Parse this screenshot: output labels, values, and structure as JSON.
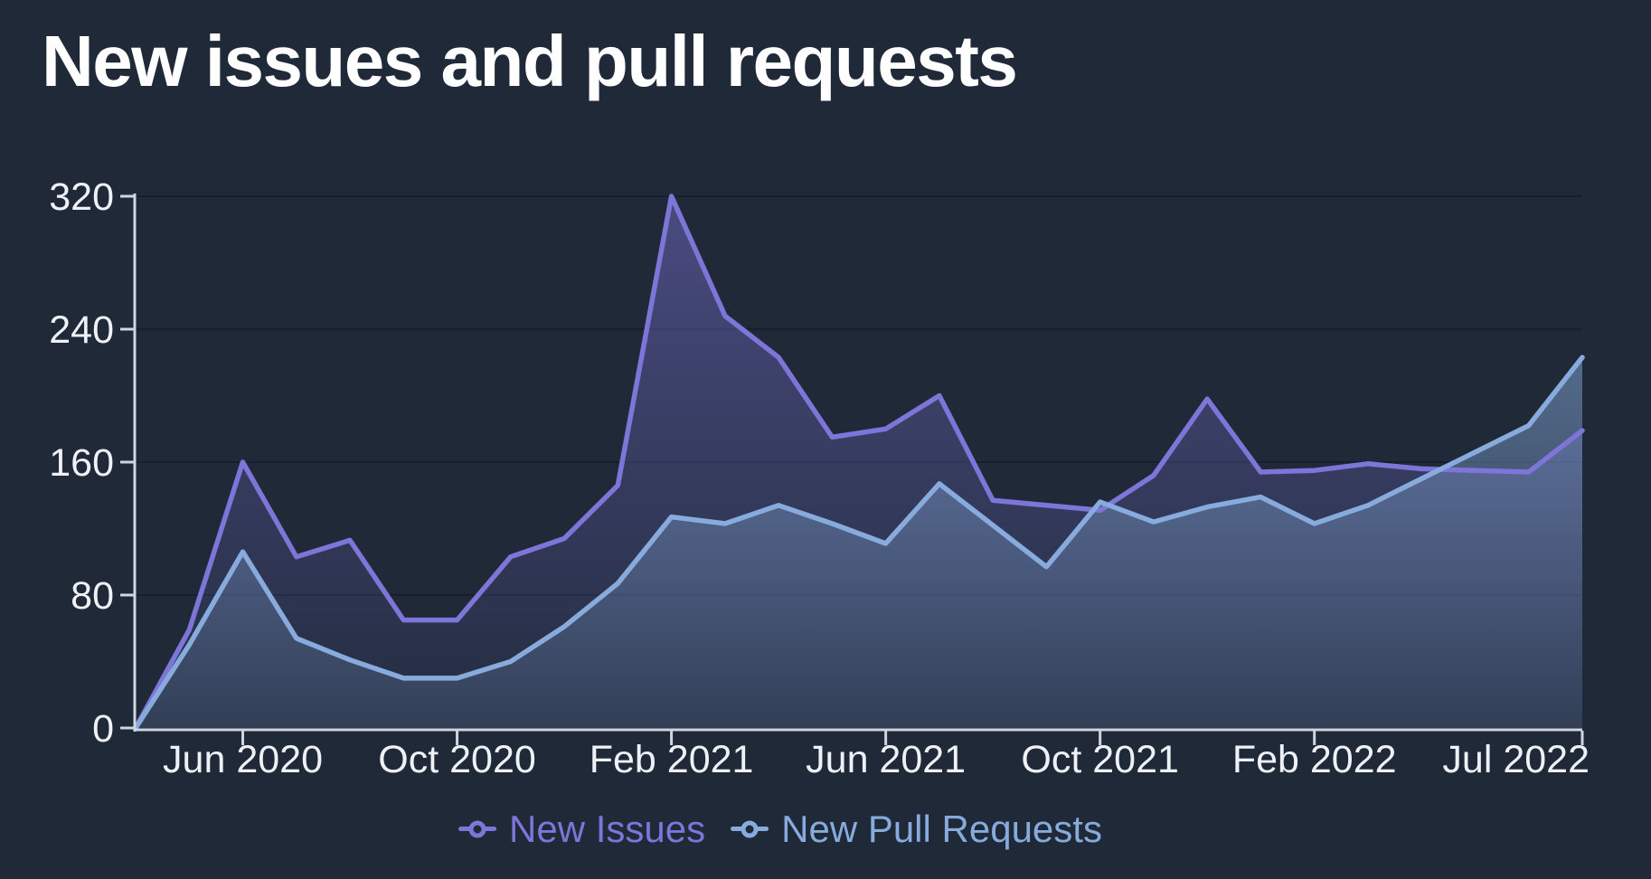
{
  "title": "New issues and pull requests",
  "colors": {
    "background": "#1f2938",
    "title": "#ffffff",
    "axis_line": "#cdd6e1",
    "tick_label": "#eef1f6",
    "gridline": "rgba(9,15,27,0.38)",
    "new_issues": "#7d75d8",
    "new_pull_requests": "#87abdc"
  },
  "legend": {
    "items": [
      {
        "id": "new-issues",
        "label": "New Issues",
        "color": "#7d75d8"
      },
      {
        "id": "new-pull-requests",
        "label": "New Pull Requests",
        "color": "#87abdc"
      }
    ]
  },
  "y_axis": {
    "tick_labels": [
      "0",
      "80",
      "160",
      "240",
      "320"
    ]
  },
  "x_axis": {
    "tick_labels": [
      "Jun 2020",
      "Oct 2020",
      "Feb 2021",
      "Jun 2021",
      "Oct 2021",
      "Feb 2022",
      "Jul 2022"
    ]
  },
  "chart_data": {
    "type": "area",
    "title": "New issues and pull requests",
    "x": [
      "Apr 2020",
      "May 2020",
      "Jun 2020",
      "Jul 2020",
      "Aug 2020",
      "Sep 2020",
      "Oct 2020",
      "Nov 2020",
      "Dec 2020",
      "Jan 2021",
      "Feb 2021",
      "Mar 2021",
      "Apr 2021",
      "May 2021",
      "Jun 2021",
      "Jul 2021",
      "Aug 2021",
      "Sep 2021",
      "Oct 2021",
      "Nov 2021",
      "Dec 2021",
      "Jan 2022",
      "Feb 2022",
      "Mar 2022",
      "Apr 2022",
      "May 2022",
      "Jun 2022",
      "Jul 2022"
    ],
    "series": [
      {
        "name": "New Issues",
        "color": "#7d75d8",
        "fill_opacity_top": 0.45,
        "fill_opacity_bottom": 0.05,
        "values": [
          0,
          59,
          160,
          103,
          113,
          65,
          65,
          103,
          114,
          146,
          320,
          248,
          223,
          175,
          180,
          200,
          137,
          134,
          131,
          152,
          198,
          154,
          155,
          159,
          156,
          155,
          154,
          179
        ]
      },
      {
        "name": "New Pull Requests",
        "color": "#87abdc",
        "fill_opacity_top": 0.5,
        "fill_opacity_bottom": 0.14,
        "values": [
          0,
          50,
          106,
          54,
          41,
          30,
          30,
          40,
          61,
          87,
          127,
          123,
          134,
          123,
          111,
          147,
          122,
          97,
          136,
          124,
          133,
          139,
          123,
          134,
          150,
          166,
          182,
          223
        ]
      }
    ],
    "ylim": [
      0,
      320
    ],
    "yticks": [
      0,
      80,
      160,
      240,
      320
    ],
    "x_tick_indices": [
      2,
      6,
      10,
      14,
      18,
      22,
      27
    ],
    "grid": true,
    "legend_position": "bottom"
  }
}
